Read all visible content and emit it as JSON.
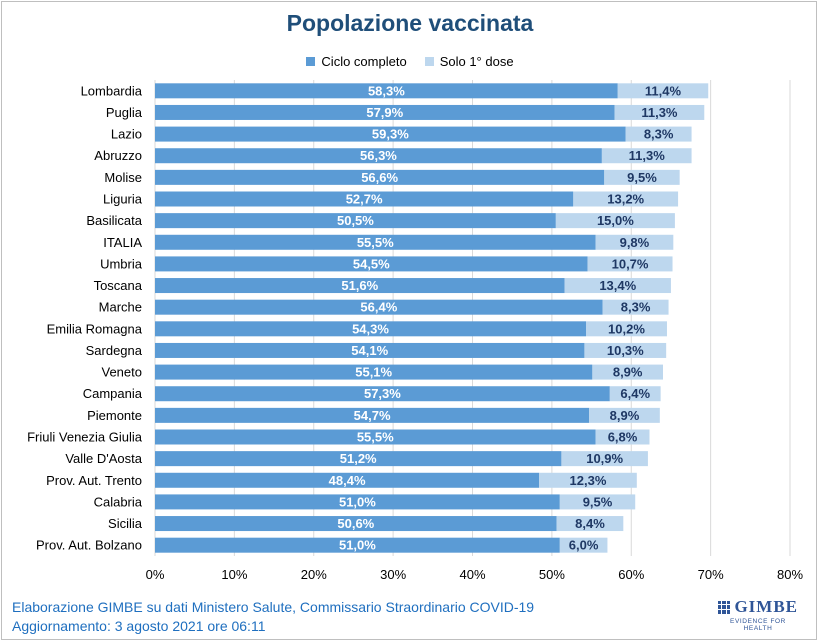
{
  "chart_data": {
    "type": "bar",
    "orientation": "horizontal",
    "stacked": true,
    "title": "Popolazione vaccinata",
    "legend": [
      "Ciclo completo",
      "Solo 1° dose"
    ],
    "legend_position": "top",
    "categories": [
      "Lombardia",
      "Puglia",
      "Lazio",
      "Abruzzo",
      "Molise",
      "Liguria",
      "Basilicata",
      "ITALIA",
      "Umbria",
      "Toscana",
      "Marche",
      "Emilia Romagna",
      "Sardegna",
      "Veneto",
      "Campania",
      "Piemonte",
      "Friuli Venezia Giulia",
      "Valle D'Aosta",
      "Prov. Aut. Trento",
      "Calabria",
      "Sicilia",
      "Prov. Aut. Bolzano"
    ],
    "series": [
      {
        "name": "Ciclo completo",
        "color": "#5b9bd5",
        "values": [
          58.3,
          57.9,
          59.3,
          56.3,
          56.6,
          52.7,
          50.5,
          55.5,
          54.5,
          51.6,
          56.4,
          54.3,
          54.1,
          55.1,
          57.3,
          54.7,
          55.5,
          51.2,
          48.4,
          51.0,
          50.6,
          51.0
        ],
        "labels": [
          "58,3%",
          "57,9%",
          "59,3%",
          "56,3%",
          "56,6%",
          "52,7%",
          "50,5%",
          "55,5%",
          "54,5%",
          "51,6%",
          "56,4%",
          "54,3%",
          "54,1%",
          "55,1%",
          "57,3%",
          "54,7%",
          "55,5%",
          "51,2%",
          "48,4%",
          "51,0%",
          "50,6%",
          "51,0%"
        ]
      },
      {
        "name": "Solo 1° dose",
        "color": "#bdd7ee",
        "values": [
          11.4,
          11.3,
          8.3,
          11.3,
          9.5,
          13.2,
          15.0,
          9.8,
          10.7,
          13.4,
          8.3,
          10.2,
          10.3,
          8.9,
          6.4,
          8.9,
          6.8,
          10.9,
          12.3,
          9.5,
          8.4,
          6.0
        ],
        "labels": [
          "11,4%",
          "11,3%",
          "8,3%",
          "11,3%",
          "9,5%",
          "13,2%",
          "15,0%",
          "9,8%",
          "10,7%",
          "13,4%",
          "8,3%",
          "10,2%",
          "10,3%",
          "8,9%",
          "6,4%",
          "8,9%",
          "6,8%",
          "10,9%",
          "12,3%",
          "9,5%",
          "8,4%",
          "6,0%"
        ]
      }
    ],
    "xlim": [
      0,
      80
    ],
    "x_ticks": [
      "0%",
      "10%",
      "20%",
      "30%",
      "40%",
      "50%",
      "60%",
      "70%",
      "80%"
    ],
    "grid": true
  },
  "footer": {
    "line1": "Elaborazione GIMBE su dati Ministero Salute, Commissario Straordinario COVID-19",
    "line2": "Aggiornamento: 3 agosto 2021 ore 06:11"
  },
  "logo": {
    "name": "GIMBE",
    "tagline": "EVIDENCE FOR HEALTH"
  },
  "colors": {
    "title": "#1f4e79",
    "footer": "#1f6fbf",
    "label_dark": "#1f3864"
  }
}
